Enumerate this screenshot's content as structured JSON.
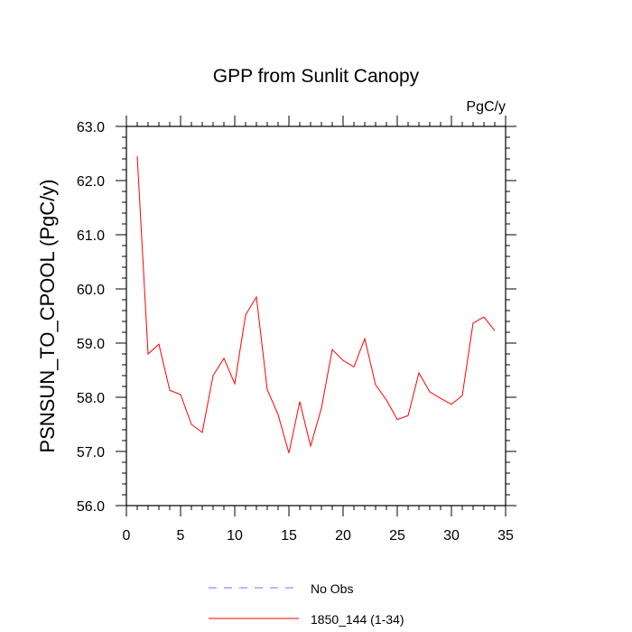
{
  "chart_data": {
    "type": "line",
    "title": "GPP from Sunlit Canopy",
    "units_label": "PgC/y",
    "ylabel": "PSNSUN_TO_CPOOL  (PgC/y)",
    "xlabel": "",
    "xlim": [
      0,
      35
    ],
    "ylim": [
      56.0,
      63.0
    ],
    "x_ticks": [
      0,
      5,
      10,
      15,
      20,
      25,
      30,
      35
    ],
    "x_tick_labels": [
      "0",
      "5",
      "10",
      "15",
      "20",
      "25",
      "30",
      "35"
    ],
    "y_ticks": [
      56.0,
      57.0,
      58.0,
      59.0,
      60.0,
      61.0,
      62.0,
      63.0
    ],
    "y_tick_labels": [
      "56.0",
      "57.0",
      "58.0",
      "59.0",
      "60.0",
      "61.0",
      "62.0",
      "63.0"
    ],
    "grid": false,
    "legend_position": "bottom",
    "series": [
      {
        "name": "No Obs",
        "color": "#6f6fff",
        "style": "dashed",
        "x": [],
        "y": []
      },
      {
        "name": "1850_144 (1-34)",
        "color": "#ff0000",
        "style": "solid",
        "x": [
          1,
          2,
          3,
          4,
          5,
          6,
          7,
          8,
          9,
          10,
          11,
          12,
          13,
          14,
          15,
          16,
          17,
          18,
          19,
          20,
          21,
          22,
          23,
          24,
          25,
          26,
          27,
          28,
          29,
          30,
          31,
          32,
          33,
          34
        ],
        "y": [
          62.45,
          58.8,
          58.98,
          58.13,
          58.05,
          57.5,
          57.35,
          58.4,
          58.72,
          58.25,
          59.52,
          59.85,
          58.14,
          57.68,
          56.97,
          57.92,
          57.1,
          57.8,
          58.88,
          58.68,
          58.56,
          59.08,
          58.23,
          57.95,
          57.59,
          57.66,
          58.45,
          58.1,
          57.98,
          57.87,
          58.03,
          59.37,
          59.48,
          59.23
        ]
      }
    ]
  }
}
